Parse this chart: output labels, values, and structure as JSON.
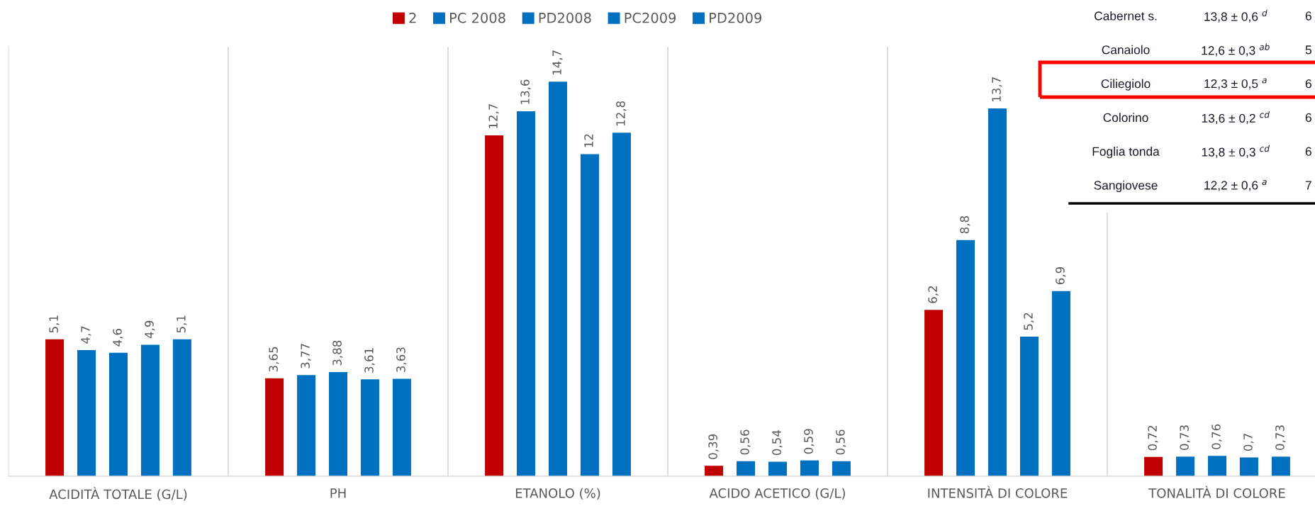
{
  "chart_data": {
    "type": "bar",
    "categories": [
      "ACIDITÀ TOTALE (G/L)",
      "PH",
      "ETANOLO (%)",
      "ACIDO ACETICO (G/L)",
      "INTENSITÀ DI COLORE",
      "TONALITÀ DI COLORE"
    ],
    "series": [
      {
        "name": "2",
        "color": "#c00000",
        "values": [
          5.1,
          3.65,
          12.7,
          0.39,
          6.2,
          0.72
        ],
        "value_labels": [
          "5,1",
          "3,65",
          "12,7",
          "0,39",
          "6,2",
          "0,72"
        ]
      },
      {
        "name": "PC 2008",
        "color": "#0070c0",
        "values": [
          4.7,
          3.77,
          13.6,
          0.56,
          8.8,
          0.73
        ],
        "value_labels": [
          "4,7",
          "3,77",
          "13,6",
          "0,56",
          "8,8",
          "0,73"
        ]
      },
      {
        "name": "PD2008",
        "color": "#0070c0",
        "values": [
          4.6,
          3.88,
          14.7,
          0.54,
          13.7,
          0.76
        ],
        "value_labels": [
          "4,6",
          "3,88",
          "14,7",
          "0,54",
          "13,7",
          "0,76"
        ]
      },
      {
        "name": "PC2009",
        "color": "#0070c0",
        "values": [
          4.9,
          3.61,
          12,
          0.59,
          5.2,
          0.7
        ],
        "value_labels": [
          "4,9",
          "3,61",
          "12",
          "0,59",
          "5,2",
          "0,7"
        ]
      },
      {
        "name": "PD2009",
        "color": "#0070c0",
        "values": [
          5.1,
          3.63,
          12.8,
          0.56,
          6.9,
          0.73
        ],
        "value_labels": [
          "5,1",
          "3,63",
          "12,8",
          "0,56",
          "6,9",
          "0,73"
        ]
      }
    ],
    "ylim": [
      0,
      16
    ],
    "tick_labels": "x",
    "grid": "x",
    "legend": "top",
    "annotations": [
      "Cabernet s.",
      "13,8 ± 0,6 $^{d}$",
      "6",
      "Canaiolo",
      "12,6 ± 0,3 $^{ab}$",
      "5",
      "Ciliegiolo",
      "12,3 ± 0,5 $^{a}$",
      "6",
      "Colorino",
      "13,6 ± 0,2 $^{cd}$",
      "6",
      "Foglia tonda",
      "13,8 ± 0,3 $^{cd}$",
      "6",
      "Sangiovese",
      "12,2 ± 0,6 $^{a}$",
      "7"
    ]
  }
}
